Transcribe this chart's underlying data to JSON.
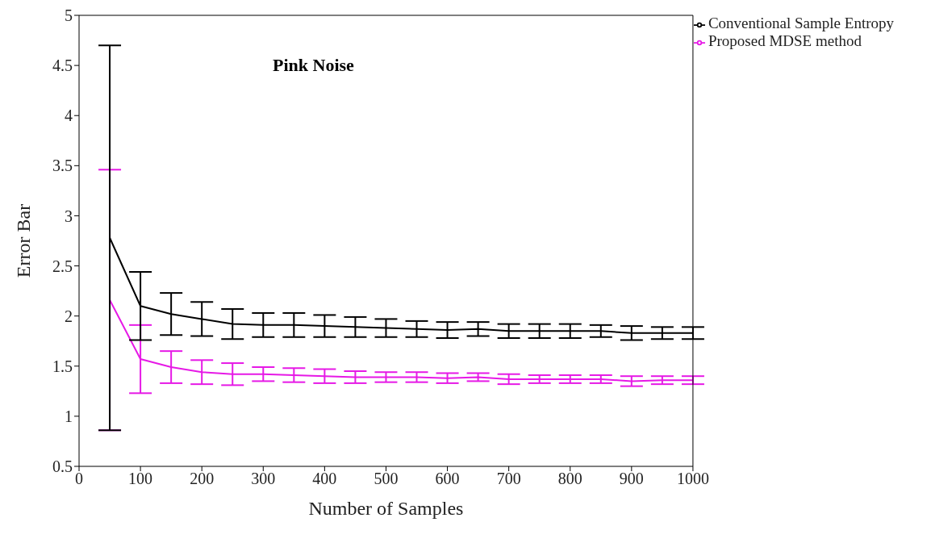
{
  "chart_data": {
    "type": "line",
    "xlabel": "Number of Samples",
    "ylabel": "Error Bar",
    "annotations": [
      "Pink Noise"
    ],
    "x": [
      50,
      100,
      150,
      200,
      250,
      300,
      350,
      400,
      450,
      500,
      550,
      600,
      650,
      700,
      750,
      800,
      850,
      900,
      950,
      1000
    ],
    "xlim": [
      0,
      1000
    ],
    "xticks": [
      0,
      100,
      200,
      300,
      400,
      500,
      600,
      700,
      800,
      900,
      1000
    ],
    "ylim": [
      0.5,
      5
    ],
    "yticks": [
      0.5,
      1,
      1.5,
      2,
      2.5,
      3,
      3.5,
      4,
      4.5,
      5
    ],
    "grid": false,
    "legend": "top right",
    "marker": "none",
    "line_style": "solid",
    "series": [
      {
        "name": "Proposed MDSE method",
        "color": "#e619e6",
        "values": [
          2.16,
          1.57,
          1.49,
          1.44,
          1.42,
          1.42,
          1.41,
          1.4,
          1.39,
          1.39,
          1.39,
          1.38,
          1.39,
          1.37,
          1.37,
          1.37,
          1.37,
          1.35,
          1.36,
          1.36
        ],
        "errors": [
          1.3,
          0.34,
          0.16,
          0.12,
          0.11,
          0.07,
          0.07,
          0.07,
          0.06,
          0.05,
          0.05,
          0.05,
          0.04,
          0.05,
          0.04,
          0.04,
          0.04,
          0.05,
          0.04,
          0.04
        ]
      },
      {
        "name": "Conventional Sample Entropy",
        "color": "#000000",
        "values": [
          2.78,
          2.1,
          2.02,
          1.97,
          1.92,
          1.91,
          1.91,
          1.9,
          1.89,
          1.88,
          1.87,
          1.86,
          1.87,
          1.85,
          1.85,
          1.85,
          1.85,
          1.83,
          1.83,
          1.83
        ],
        "errors": [
          1.92,
          0.34,
          0.21,
          0.17,
          0.15,
          0.12,
          0.12,
          0.11,
          0.1,
          0.09,
          0.08,
          0.08,
          0.07,
          0.07,
          0.07,
          0.07,
          0.06,
          0.07,
          0.06,
          0.06
        ]
      }
    ]
  }
}
